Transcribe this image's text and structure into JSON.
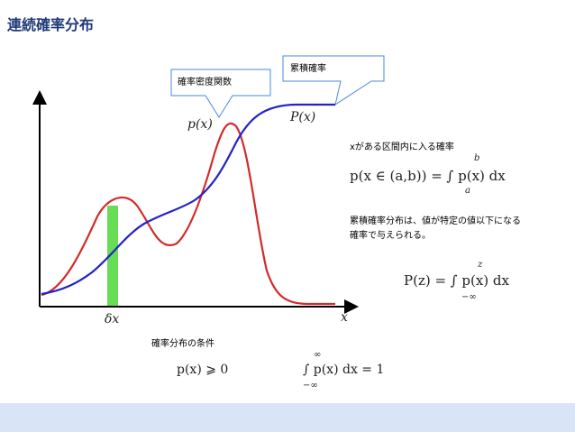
{
  "slide": {
    "title": "連続確率分布"
  },
  "callouts": {
    "pdf": "確率密度関数",
    "cdf": "累積確率"
  },
  "diagram": {
    "pdf_label": "p(x)",
    "cdf_label": "P(x)",
    "dx_label": "δx",
    "x_axis_label": "x",
    "pdf_color": "#d42a2a",
    "cdf_color": "#2222c8",
    "strip_color": "#66dd55"
  },
  "notes": {
    "interval_prob": "xがある区間内に入る確率",
    "interval_formula": "p(x ∈ (a,b)) = ∫ p(x) dx",
    "interval_upper": "b",
    "interval_lower": "a",
    "cdf_desc_line1": "累積確率分布は、値が特定の値以下になる",
    "cdf_desc_line2": "確率で与えられる。",
    "cdf_formula": "P(z) = ∫ p(x) dx",
    "cdf_upper": "z",
    "cdf_lower": "−∞",
    "conditions_label": "確率分布の条件",
    "cond_nonneg": "p(x) ⩾ 0",
    "cond_norm": "∫ p(x) dx = 1",
    "norm_upper": "∞",
    "norm_lower": "−∞"
  }
}
